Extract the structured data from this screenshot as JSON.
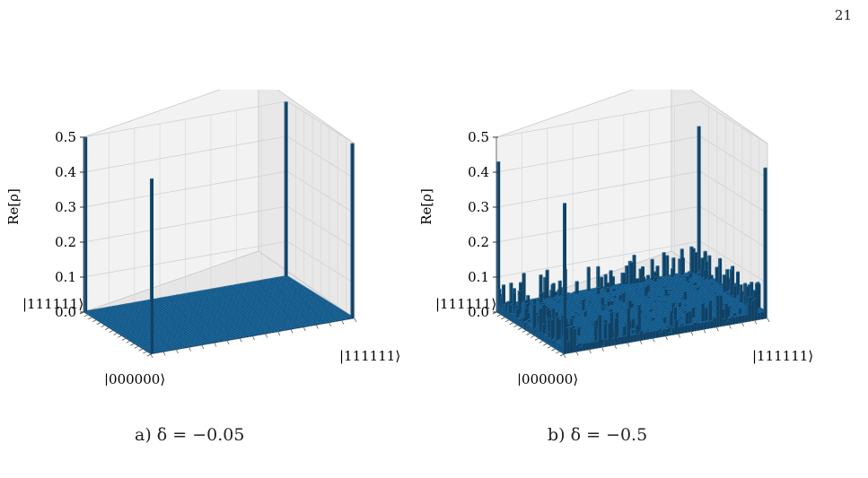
{
  "page": {
    "number": "21"
  },
  "chart_data": [
    {
      "type": "bar3d",
      "caption": "a)   δ = −0.05",
      "zlabel": "Re[ρ]",
      "zlim": [
        0,
        0.5
      ],
      "zticks": [
        "0.0",
        "0.1",
        "0.2",
        "0.3",
        "0.4",
        "0.5"
      ],
      "x_labels": [
        "|000000⟩",
        "|111111⟩"
      ],
      "y_labels": [
        "|000000⟩",
        "|111111⟩"
      ],
      "grid": true,
      "bar_color": "#1f77b4",
      "floor_value": 0.003,
      "peaks": [
        {
          "x": "|000000⟩",
          "y": "|111111⟩",
          "value": 0.5
        },
        {
          "x": "|111111⟩",
          "y": "|111111⟩",
          "value": 0.5
        },
        {
          "x": "|111111⟩",
          "y": "|000000⟩",
          "value": 0.5
        },
        {
          "x": "|000000⟩",
          "y": "|000000⟩",
          "value": 0.5
        }
      ]
    },
    {
      "type": "bar3d",
      "caption": "b)   δ = −0.5",
      "zlabel": "Re[ρ]",
      "zlim": [
        0,
        0.5
      ],
      "zticks": [
        "0.0",
        "0.1",
        "0.2",
        "0.3",
        "0.4",
        "0.5"
      ],
      "x_labels": [
        "|000000⟩",
        "|111111⟩"
      ],
      "y_labels": [
        "|000000⟩",
        "|111111⟩"
      ],
      "grid": true,
      "bar_color": "#1f77b4",
      "floor_value": 0.02,
      "peaks": [
        {
          "x": "|000000⟩",
          "y": "|111111⟩",
          "value": 0.43
        },
        {
          "x": "|111111⟩",
          "y": "|111111⟩",
          "value": 0.43
        },
        {
          "x": "|111111⟩",
          "y": "|000000⟩",
          "value": 0.43
        },
        {
          "x": "|000000⟩",
          "y": "|000000⟩",
          "value": 0.43
        }
      ],
      "secondary_peaks_max": 0.1
    }
  ]
}
